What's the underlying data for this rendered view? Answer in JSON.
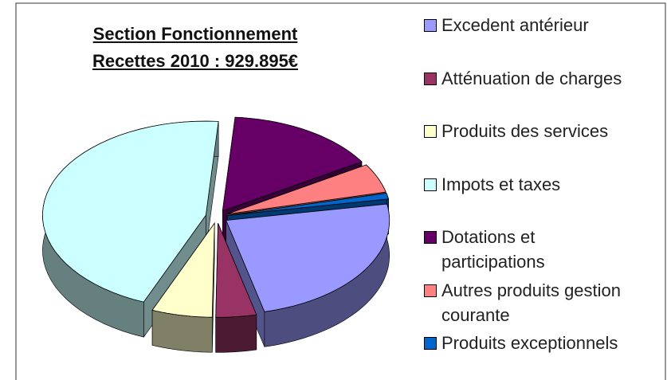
{
  "chart_data": {
    "type": "pie",
    "title": "Section Fonctionnement",
    "subtitle": "Recettes 2010 : 929.895€",
    "categories": [
      "Excedent antérieur",
      "Atténuation de charges",
      "Produits des services",
      "Impots et taxes",
      "Dotations et participations",
      "Autres produits gestion courante",
      "Produits exceptionnels"
    ],
    "values": [
      24,
      4,
      6,
      45,
      15,
      5,
      1
    ],
    "colors": [
      "#9999ff",
      "#993366",
      "#ffffcc",
      "#ccffff",
      "#660066",
      "#ff8080",
      "#0066cc"
    ],
    "legend": "right"
  }
}
